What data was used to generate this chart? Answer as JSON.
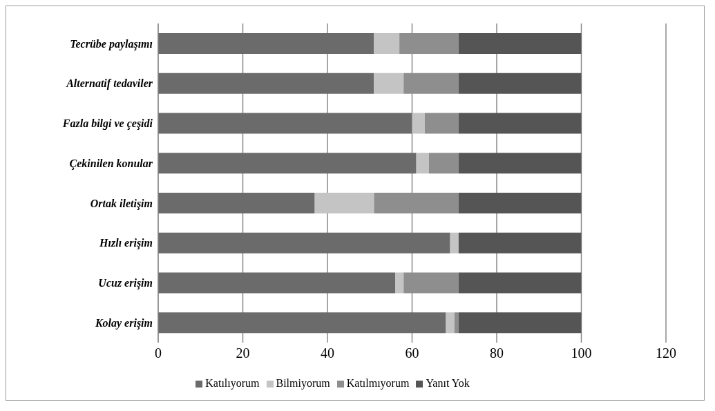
{
  "chart_data": {
    "type": "bar",
    "orientation": "horizontal",
    "stacked": true,
    "categories": [
      "Tecrübe paylaşımı",
      "Alternatif tedaviler",
      "Fazla bilgi ve çeşidi",
      "Çekinilen konular",
      "Ortak iletişim",
      "Hızlı erişim",
      "Ucuz erişim",
      "Kolay erişim"
    ],
    "series": [
      {
        "name": "Katılıyorum",
        "color": "#6b6b6b",
        "values": [
          51,
          51,
          60,
          61,
          37,
          69,
          56,
          68
        ]
      },
      {
        "name": "Bilmiyorum",
        "color": "#c4c4c4",
        "values": [
          6,
          7,
          3,
          3,
          14,
          2,
          2,
          2
        ]
      },
      {
        "name": "Katılmıyorum",
        "color": "#8e8e8e",
        "values": [
          14,
          13,
          8,
          7,
          20,
          0,
          13,
          1
        ]
      },
      {
        "name": "Yanıt Yok",
        "color": "#555555",
        "values": [
          29,
          29,
          29,
          29,
          29,
          29,
          29,
          29
        ]
      }
    ],
    "xlim": [
      0,
      120
    ],
    "xticks": [
      0,
      20,
      40,
      60,
      80,
      100,
      120
    ],
    "grid": "x",
    "legend": "bottom"
  }
}
